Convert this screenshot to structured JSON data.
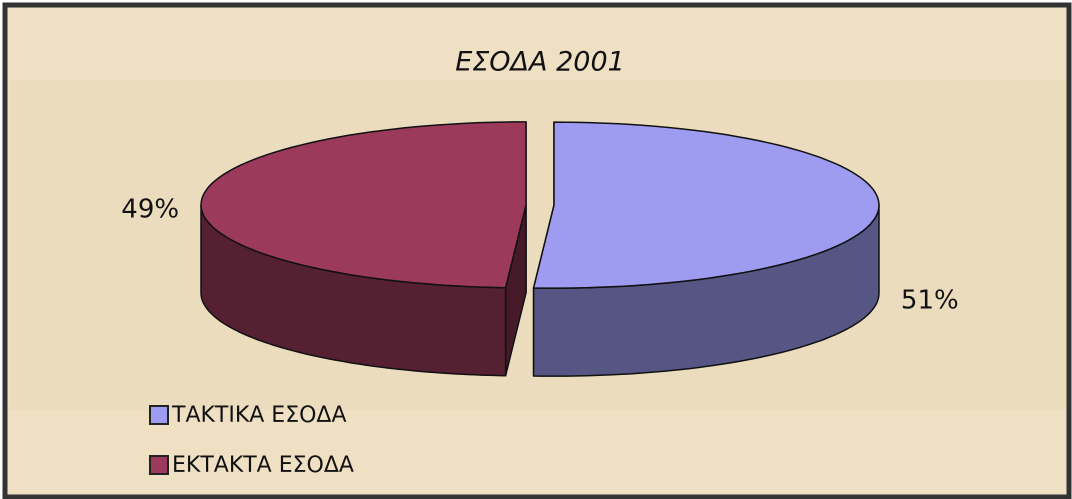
{
  "chart_data": {
    "type": "pie",
    "title": "ΕΣΟΔΑ 2001",
    "categories": [
      "ΤΑΚΤΙΚΑ ΕΣΟΔΑ",
      "ΕΚΤΑΚΤΑ ΕΣΟΔΑ"
    ],
    "values": [
      51,
      49
    ],
    "value_labels": [
      "51%",
      "49%"
    ],
    "colors": [
      "#9d9cf0",
      "#9b3a5a"
    ]
  }
}
